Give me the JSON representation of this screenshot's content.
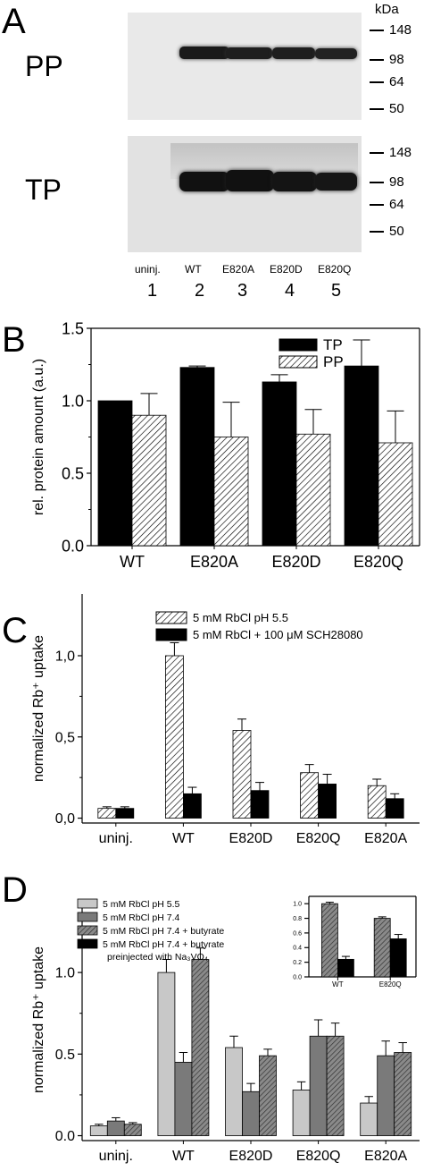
{
  "panels": {
    "A": "A",
    "B": "B",
    "C": "C",
    "D": "D"
  },
  "panel_a": {
    "unit": "kDa",
    "pp_label": "PP",
    "tp_label": "TP",
    "markers": [
      "148",
      "98",
      "64",
      "50"
    ],
    "lane_labels": [
      "uninj.",
      "WT",
      "E820A",
      "E820D",
      "E820Q"
    ],
    "lane_numbers": [
      "1",
      "2",
      "3",
      "4",
      "5"
    ]
  },
  "chart_data": [
    {
      "type": "bar",
      "categories": [
        "WT",
        "E820A",
        "E820D",
        "E820Q"
      ],
      "series": [
        {
          "name": "TP",
          "values": [
            1.0,
            1.23,
            1.13,
            1.24
          ],
          "errors": [
            0.0,
            0.01,
            0.05,
            0.18
          ],
          "fill": "solid"
        },
        {
          "name": "PP",
          "values": [
            0.9,
            0.75,
            0.77,
            0.71
          ],
          "errors": [
            0.15,
            0.24,
            0.17,
            0.22
          ],
          "fill": "hatched"
        }
      ],
      "ylabel": "rel. protein amount (a.u.)",
      "ylim": [
        0.0,
        1.5
      ],
      "yticks": [
        "0.0",
        "0.5",
        "1.0",
        "1.5"
      ],
      "legend": "top-right"
    },
    {
      "type": "bar",
      "categories": [
        "uninj.",
        "WT",
        "E820D",
        "E820Q",
        "E820A"
      ],
      "series": [
        {
          "name": "5 mM RbCl pH 5.5",
          "values": [
            0.06,
            1.0,
            0.54,
            0.28,
            0.2
          ],
          "errors": [
            0.01,
            0.08,
            0.07,
            0.05,
            0.04
          ],
          "fill": "hatched"
        },
        {
          "name": "5 mM RbCl + 100 μM SCH28080",
          "values": [
            0.06,
            0.15,
            0.17,
            0.21,
            0.12
          ],
          "errors": [
            0.01,
            0.04,
            0.05,
            0.06,
            0.03
          ],
          "fill": "solid"
        }
      ],
      "ylabel": "normalized Rb⁺ uptake",
      "ylim": [
        0.0,
        1.25
      ],
      "yticks": [
        "0,0",
        "0,5",
        "1,0"
      ],
      "legend": "top-right"
    },
    {
      "type": "bar",
      "categories": [
        "uninj.",
        "WT",
        "E820D",
        "E820Q",
        "E820A"
      ],
      "series": [
        {
          "name": "5 mM RbCl pH 5.5",
          "values": [
            0.06,
            1.0,
            0.54,
            0.28,
            0.2
          ],
          "errors": [
            0.01,
            0.08,
            0.07,
            0.05,
            0.04
          ],
          "color": "#c8c8c8"
        },
        {
          "name": "5 mM RbCl pH 7.4",
          "values": [
            0.09,
            0.45,
            0.27,
            0.61,
            0.49
          ],
          "errors": [
            0.02,
            0.06,
            0.05,
            0.1,
            0.09
          ],
          "color": "#7a7a7a"
        },
        {
          "name": "5 mM RbCl pH 7.4 + butyrate",
          "values": [
            0.07,
            1.08,
            0.49,
            0.61,
            0.51
          ],
          "errors": [
            0.01,
            0.07,
            0.04,
            0.08,
            0.06
          ],
          "color": "#6a6a6a",
          "hatched": true
        }
      ],
      "ylabel": "normalized Rb⁺ uptake",
      "ylim": [
        0.0,
        1.3
      ],
      "yticks": [
        "0.0",
        "0.5",
        "1.0"
      ],
      "legend": "top-left",
      "legend_extra": [
        "5 mM RbCl pH 7.4 + butyrate",
        "preinjected with Na₃VO₄"
      ]
    },
    {
      "type": "bar",
      "categories": [
        "WT",
        "E820Q"
      ],
      "series": [
        {
          "name": "5 mM RbCl pH 7.4 + butyrate",
          "values": [
            1.0,
            0.8
          ],
          "errors": [
            0.02,
            0.02
          ],
          "color": "#6a6a6a",
          "hatched": true
        },
        {
          "name": "5 mM RbCl pH 7.4 + butyrate preinjected with Na₃VO₄",
          "values": [
            0.24,
            0.52
          ],
          "errors": [
            0.04,
            0.06
          ],
          "color": "#000000"
        }
      ],
      "ylim": [
        0.0,
        1.1
      ],
      "yticks": [
        "0.0",
        "0.2",
        "0.4",
        "0.6",
        "0.8",
        "1.0"
      ]
    }
  ]
}
